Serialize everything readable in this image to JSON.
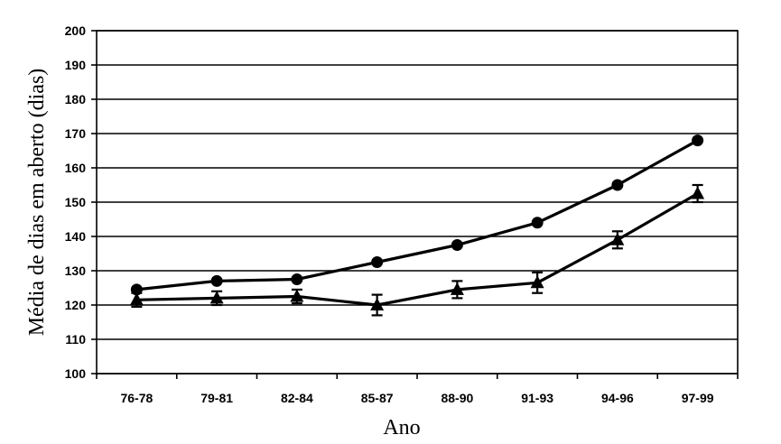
{
  "chart_data": {
    "type": "line",
    "title": "",
    "xlabel": "Ano",
    "ylabel": "Média de dias em aberto (dias)",
    "categories": [
      "76-78",
      "79-81",
      "82-84",
      "85-87",
      "88-90",
      "91-93",
      "94-96",
      "97-99"
    ],
    "ylim": [
      100,
      200
    ],
    "yticks": [
      100,
      110,
      120,
      130,
      140,
      150,
      160,
      170,
      180,
      190,
      200
    ],
    "grid": true,
    "legend": "none",
    "series": [
      {
        "marker": "circle",
        "color": "#000000",
        "values": [
          124.5,
          127,
          127.5,
          132.5,
          137.5,
          144,
          155,
          168
        ],
        "errors": [
          0.5,
          0.5,
          0.5,
          0.5,
          0.5,
          0.5,
          0.5,
          0.5
        ]
      },
      {
        "marker": "triangle",
        "color": "#000000",
        "values": [
          121.5,
          122,
          122.5,
          120,
          124.5,
          126.5,
          139,
          152.5
        ],
        "errors": [
          2,
          2,
          2,
          3,
          2.5,
          3,
          2.5,
          2.5
        ]
      }
    ]
  }
}
